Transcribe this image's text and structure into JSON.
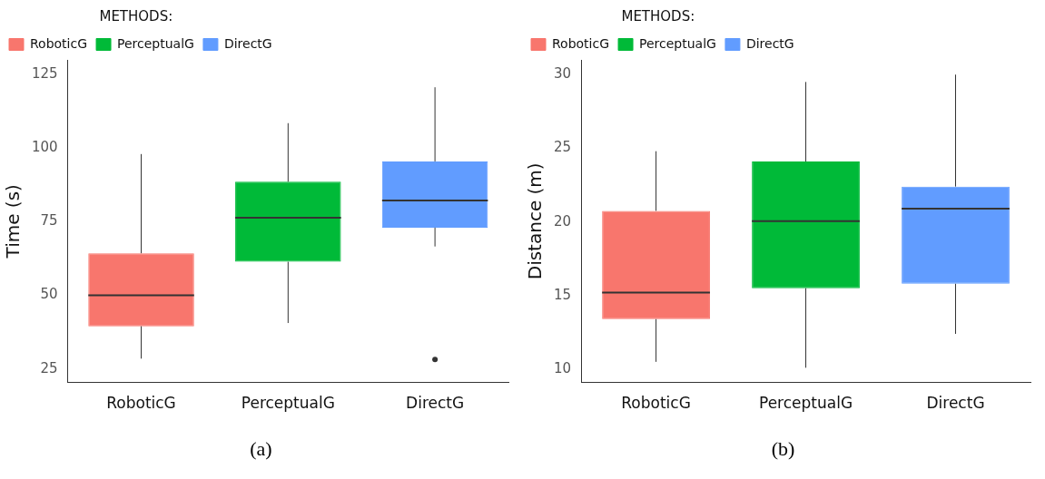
{
  "chart_data": [
    {
      "type": "box",
      "ylabel": "Time (s)",
      "legend_title": "METHODS:",
      "legend": "top",
      "grid": false,
      "categories": [
        "RoboticG",
        "PerceptualG",
        "DirectG"
      ],
      "ylim": [
        20.4,
        130
      ],
      "yticks": [
        25,
        50,
        75,
        100,
        125
      ],
      "annotations": [
        "(a)"
      ],
      "series": [
        {
          "name": "RoboticG",
          "color": "#f8766d",
          "boxes": [
            {
              "low": 28.5,
              "q1": 39.5,
              "median": 50,
              "q3": 64.3,
              "high": 98
            },
            null,
            null
          ]
        },
        {
          "name": "PerceptualG",
          "color": "#00ba38",
          "boxes": [
            null,
            {
              "low": 40.6,
              "q1": 61.4,
              "median": 76.4,
              "q3": 88.6,
              "high": 108.5
            },
            null
          ]
        },
        {
          "name": "DirectG",
          "color": "#619cff",
          "boxes": [
            null,
            null,
            {
              "low": 66.6,
              "q1": 73,
              "median": 82.2,
              "q3": 95.5,
              "high": 120.7,
              "outliers": [
                28.2
              ]
            }
          ]
        }
      ]
    },
    {
      "type": "box",
      "ylabel": "Distance (m)",
      "legend_title": "METHODS:",
      "legend": "top",
      "grid": false,
      "categories": [
        "RoboticG",
        "PerceptualG",
        "DirectG"
      ],
      "ylim": [
        9.1,
        31
      ],
      "yticks": [
        10,
        15,
        20,
        25,
        30
      ],
      "annotations": [
        "(b)"
      ],
      "series": [
        {
          "name": "RoboticG",
          "color": "#f8766d",
          "boxes": [
            {
              "low": 10.5,
              "q1": 13.4,
              "median": 15.2,
              "q3": 20.75,
              "high": 24.8
            },
            null,
            null
          ]
        },
        {
          "name": "PerceptualG",
          "color": "#00ba38",
          "boxes": [
            null,
            {
              "low": 10.1,
              "q1": 15.5,
              "median": 20.05,
              "q3": 24.1,
              "high": 29.5
            },
            null
          ]
        },
        {
          "name": "DirectG",
          "color": "#619cff",
          "boxes": [
            null,
            null,
            {
              "low": 12.4,
              "q1": 15.8,
              "median": 20.9,
              "q3": 22.4,
              "high": 30
            }
          ]
        }
      ]
    }
  ]
}
